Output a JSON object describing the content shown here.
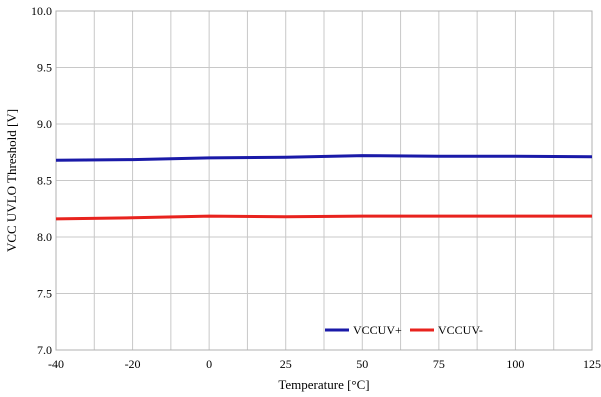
{
  "chart_data": {
    "type": "line",
    "title": "",
    "xlabel": "Temperature [°C]",
    "ylabel": "VCC UVLO Threshold  [V]",
    "x_ticks": [
      -40,
      -20,
      0,
      25,
      50,
      75,
      100,
      125
    ],
    "y_ticks": [
      "7.0",
      "7.5",
      "8.0",
      "8.5",
      "9.0",
      "9.5",
      "10.0"
    ],
    "ylim": [
      7.0,
      10.0
    ],
    "grid": true,
    "legend_position": "bottom-right",
    "series": [
      {
        "name": "VCCUV+",
        "color": "#1a1aa8",
        "x": [
          -40,
          -20,
          0,
          25,
          50,
          75,
          100,
          125
        ],
        "y": [
          8.68,
          8.685,
          8.7,
          8.705,
          8.72,
          8.715,
          8.715,
          8.71
        ]
      },
      {
        "name": "VCCUV-",
        "color": "#e8231e",
        "x": [
          -40,
          -20,
          0,
          25,
          50,
          75,
          100,
          125
        ],
        "y": [
          8.16,
          8.17,
          8.185,
          8.18,
          8.185,
          8.185,
          8.185,
          8.185
        ]
      }
    ]
  }
}
